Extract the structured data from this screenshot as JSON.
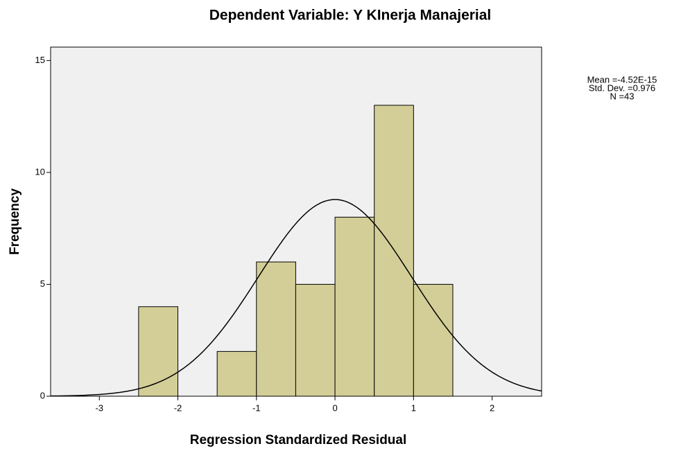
{
  "chart_data": {
    "type": "histogram",
    "title": "Dependent Variable: Y KInerja Manajerial",
    "x_label": "Regression Standardized Residual",
    "y_label": "Frequency",
    "bins": [
      -2.5,
      -2,
      -1.5,
      -1,
      -0.5,
      0,
      0.5,
      1,
      1.5
    ],
    "values": [
      4,
      0,
      2,
      6,
      5,
      8,
      13,
      5
    ],
    "color": "#d3ce97",
    "xlim": [
      -3.62,
      2.63
    ],
    "ylim": [
      0,
      15.6
    ],
    "xticks": [
      -3,
      -2,
      -1,
      0,
      1,
      2
    ],
    "yticks": [
      0,
      5,
      10,
      15
    ],
    "stats": [
      {
        "value": -4.52e-15,
        "label": "Mean =-4.52E-15"
      },
      {
        "value": 0.976,
        "label": "Std. Dev. =0.976"
      },
      {
        "value": 43,
        "label": "N =43"
      }
    ]
  }
}
